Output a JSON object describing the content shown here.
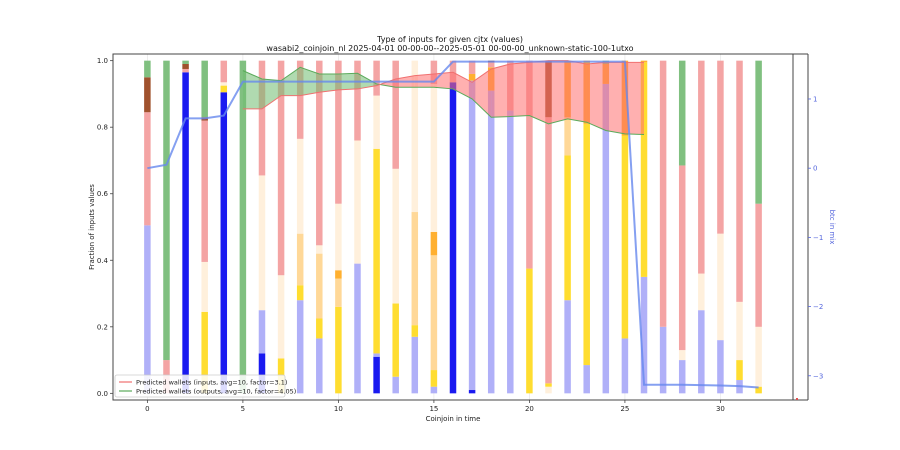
{
  "chart_data": {
    "type": "bar",
    "title": "Type of inputs for given cjtx (values)",
    "subtitle": "wasabi2_coinjoin_nl 2025-04-01 00-00-00--2025-05-01 00-00-00_unknown-static-100-1utxo",
    "xlabel": "Coinjoin in time",
    "ylabel": "Fraction of inputs values",
    "y2label": "btc in mix",
    "xlim": [
      -1.8,
      33.8
    ],
    "ylim": [
      -0.02,
      1.02
    ],
    "y2lim": [
      -3.35,
      1.65
    ],
    "xticks": [
      "0",
      "5",
      "10",
      "15",
      "20",
      "25",
      "30"
    ],
    "xtick_values": [
      0,
      5,
      10,
      15,
      20,
      25,
      30
    ],
    "yticks": [
      "0.0",
      "0.2",
      "0.4",
      "0.6",
      "0.8",
      "1.0"
    ],
    "ytick_values": [
      0,
      0.2,
      0.4,
      0.6,
      0.8,
      1.0
    ],
    "y2ticks": [
      "1",
      "0",
      "−1",
      "−2",
      "−3"
    ],
    "y2tick_values": [
      1,
      0,
      -1,
      -2,
      -3
    ],
    "legend": {
      "placement": "lower-left",
      "entries": [
        {
          "label": "Predicted wallets (inputs, avg=10, factor=3.1)",
          "color": "#f07070"
        },
        {
          "label": "Predicted wallets (outputs, avg=10, factor=4.05)",
          "color": "#5aaa5a"
        }
      ]
    },
    "category_colors": {
      "light_blue": "#b0b0f8",
      "blue": "#1a1af0",
      "yellow": "#ffdd30",
      "light_orange": "#ffd898",
      "cream": "#fff0dc",
      "orange": "#ffb030",
      "pink": "#f4a4a4",
      "brown": "#a0522d",
      "green": "#80c080"
    },
    "stacks": [
      {
        "x": 0,
        "segments": [
          [
            "light_blue",
            0.505
          ],
          [
            "pink",
            0.34
          ],
          [
            "brown",
            0.105
          ],
          [
            "green",
            0.05
          ]
        ]
      },
      {
        "x": 1,
        "segments": [
          [
            "pink",
            0.1
          ],
          [
            "green",
            0.9
          ]
        ]
      },
      {
        "x": 2,
        "segments": [
          [
            "blue",
            0.965
          ],
          [
            "pink",
            0.01
          ],
          [
            "brown",
            0.015
          ],
          [
            "green",
            0.01
          ]
        ]
      },
      {
        "x": 3,
        "segments": [
          [
            "yellow",
            0.245
          ],
          [
            "cream",
            0.15
          ],
          [
            "pink",
            0.425
          ],
          [
            "brown",
            0.01
          ],
          [
            "green",
            0.17
          ]
        ]
      },
      {
        "x": 4,
        "segments": [
          [
            "blue",
            0.905
          ],
          [
            "yellow",
            0.02
          ],
          [
            "cream",
            0.01
          ],
          [
            "pink",
            0.065
          ]
        ]
      },
      {
        "x": 5,
        "segments": [
          [
            "green",
            1.0
          ]
        ]
      },
      {
        "x": 6,
        "segments": [
          [
            "blue",
            0.12
          ],
          [
            "light_blue",
            0.13
          ],
          [
            "cream",
            0.405
          ],
          [
            "pink",
            0.345
          ]
        ]
      },
      {
        "x": 7,
        "segments": [
          [
            "yellow",
            0.105
          ],
          [
            "cream",
            0.25
          ],
          [
            "pink",
            0.645
          ]
        ]
      },
      {
        "x": 8,
        "segments": [
          [
            "light_blue",
            0.28
          ],
          [
            "yellow",
            0.045
          ],
          [
            "light_orange",
            0.155
          ],
          [
            "cream",
            0.285
          ],
          [
            "pink",
            0.235
          ]
        ]
      },
      {
        "x": 9,
        "segments": [
          [
            "light_blue",
            0.165
          ],
          [
            "yellow",
            0.06
          ],
          [
            "light_orange",
            0.195
          ],
          [
            "cream",
            0.025
          ],
          [
            "pink",
            0.555
          ]
        ]
      },
      {
        "x": 10,
        "segments": [
          [
            "yellow",
            0.26
          ],
          [
            "light_orange",
            0.085
          ],
          [
            "orange",
            0.025
          ],
          [
            "cream",
            0.2
          ],
          [
            "pink",
            0.43
          ]
        ]
      },
      {
        "x": 11,
        "segments": [
          [
            "light_blue",
            0.39
          ],
          [
            "cream",
            0.37
          ],
          [
            "pink",
            0.24
          ]
        ]
      },
      {
        "x": 12,
        "segments": [
          [
            "blue",
            0.11
          ],
          [
            "light_blue",
            0.01
          ],
          [
            "yellow",
            0.615
          ],
          [
            "cream",
            0.16
          ],
          [
            "pink",
            0.105
          ]
        ]
      },
      {
        "x": 13,
        "segments": [
          [
            "light_blue",
            0.05
          ],
          [
            "yellow",
            0.22
          ],
          [
            "cream",
            0.405
          ],
          [
            "pink",
            0.325
          ]
        ]
      },
      {
        "x": 14,
        "segments": [
          [
            "light_blue",
            0.17
          ],
          [
            "yellow",
            0.035
          ],
          [
            "light_orange",
            0.34
          ],
          [
            "cream",
            0.455
          ]
        ]
      },
      {
        "x": 15,
        "segments": [
          [
            "light_blue",
            0.02
          ],
          [
            "yellow",
            0.05
          ],
          [
            "light_orange",
            0.345
          ],
          [
            "orange",
            0.07
          ],
          [
            "cream",
            0.445
          ],
          [
            "pink",
            0.07
          ]
        ]
      },
      {
        "x": 16,
        "segments": [
          [
            "blue",
            0.935
          ],
          [
            "pink",
            0.065
          ]
        ]
      },
      {
        "x": 17,
        "segments": [
          [
            "blue",
            0.01
          ],
          [
            "light_blue",
            0.93
          ],
          [
            "orange",
            0.02
          ],
          [
            "pink",
            0.04
          ]
        ]
      },
      {
        "x": 18,
        "segments": [
          [
            "light_blue",
            0.91
          ],
          [
            "orange",
            0.07
          ],
          [
            "pink",
            0.015
          ],
          [
            "brown",
            0.005
          ]
        ]
      },
      {
        "x": 19,
        "segments": [
          [
            "light_blue",
            0.85
          ],
          [
            "pink",
            0.15
          ]
        ]
      },
      {
        "x": 20,
        "segments": [
          [
            "yellow",
            0.375
          ],
          [
            "pink",
            0.625
          ]
        ]
      },
      {
        "x": 21,
        "segments": [
          [
            "cream",
            0.02
          ],
          [
            "yellow",
            0.01
          ],
          [
            "pink",
            0.8
          ],
          [
            "brown",
            0.17
          ]
        ]
      },
      {
        "x": 22,
        "segments": [
          [
            "light_blue",
            0.28
          ],
          [
            "yellow",
            0.435
          ],
          [
            "light_orange",
            0.115
          ],
          [
            "orange",
            0.17
          ]
        ]
      },
      {
        "x": 23,
        "segments": [
          [
            "light_blue",
            0.085
          ],
          [
            "yellow",
            0.725
          ],
          [
            "orange",
            0.19
          ]
        ]
      },
      {
        "x": 24,
        "segments": [
          [
            "light_blue",
            0.93
          ],
          [
            "orange",
            0.06
          ],
          [
            "green",
            0.01
          ]
        ]
      },
      {
        "x": 25,
        "segments": [
          [
            "light_blue",
            0.165
          ],
          [
            "yellow",
            0.61
          ],
          [
            "orange",
            0.225
          ]
        ]
      },
      {
        "x": 26,
        "segments": [
          [
            "light_blue",
            0.35
          ],
          [
            "yellow",
            0.645
          ],
          [
            "orange",
            0.005
          ]
        ]
      },
      {
        "x": 27,
        "segments": [
          [
            "light_blue",
            0.2
          ],
          [
            "pink",
            0.8
          ]
        ]
      },
      {
        "x": 28,
        "segments": [
          [
            "light_blue",
            0.1
          ],
          [
            "cream",
            0.03
          ],
          [
            "pink",
            0.555
          ],
          [
            "green",
            0.315
          ]
        ]
      },
      {
        "x": 29,
        "segments": [
          [
            "light_blue",
            0.25
          ],
          [
            "cream",
            0.11
          ],
          [
            "pink",
            0.64
          ]
        ]
      },
      {
        "x": 30,
        "segments": [
          [
            "light_blue",
            0.16
          ],
          [
            "cream",
            0.32
          ],
          [
            "pink",
            0.52
          ]
        ]
      },
      {
        "x": 31,
        "segments": [
          [
            "light_blue",
            0.04
          ],
          [
            "yellow",
            0.06
          ],
          [
            "cream",
            0.175
          ],
          [
            "pink",
            0.725
          ]
        ]
      },
      {
        "x": 32,
        "segments": [
          [
            "yellow",
            0.02
          ],
          [
            "cream",
            0.18
          ],
          [
            "pink",
            0.37
          ],
          [
            "green",
            0.43
          ]
        ]
      }
    ],
    "series": [
      {
        "name": "btc in mix",
        "axis": "right",
        "color": "#6688ee",
        "x": [
          0,
          1,
          2,
          3,
          4,
          5,
          6,
          7,
          8,
          9,
          10,
          11,
          12,
          13,
          14,
          15,
          16,
          17,
          18,
          19,
          20,
          21,
          22,
          23,
          24,
          25,
          26,
          27,
          28,
          29,
          30,
          31,
          32
        ],
        "values": [
          0.0,
          0.05,
          0.72,
          0.72,
          0.76,
          1.25,
          1.25,
          1.25,
          1.25,
          1.25,
          1.25,
          1.25,
          1.25,
          1.25,
          1.25,
          1.25,
          1.54,
          1.54,
          1.54,
          1.54,
          1.54,
          1.54,
          1.54,
          1.54,
          1.54,
          1.54,
          -3.13,
          -3.13,
          -3.13,
          -3.135,
          -3.14,
          -3.15,
          -3.17
        ]
      },
      {
        "name": "Predicted wallets (inputs, avg=10, factor=3.1)",
        "axis": "left",
        "color": "#f07070",
        "x": [
          5,
          6,
          7,
          8,
          9,
          10,
          11,
          12,
          13,
          14,
          15,
          16,
          17,
          18,
          19,
          20,
          21,
          22,
          23,
          24,
          25,
          26
        ],
        "values": [
          0.855,
          0.855,
          0.895,
          0.895,
          0.905,
          0.912,
          0.915,
          0.925,
          0.945,
          0.955,
          0.96,
          0.965,
          0.935,
          0.975,
          0.99,
          0.995,
          1.0,
          1.0,
          0.99,
          0.995,
          0.995,
          0.995
        ]
      },
      {
        "name": "Predicted wallets (outputs, avg=10, factor=4.05)",
        "axis": "left",
        "color": "#5aaa5a",
        "x": [
          5,
          6,
          7,
          8,
          9,
          10,
          11,
          12,
          13,
          14,
          15,
          16,
          17,
          18,
          19,
          20,
          21,
          22,
          23,
          24,
          25,
          26
        ],
        "values": [
          0.97,
          0.945,
          0.94,
          0.98,
          0.96,
          0.96,
          0.962,
          0.93,
          0.92,
          0.92,
          0.92,
          0.915,
          0.885,
          0.83,
          0.832,
          0.835,
          0.81,
          0.825,
          0.815,
          0.79,
          0.78,
          0.778
        ]
      }
    ]
  }
}
